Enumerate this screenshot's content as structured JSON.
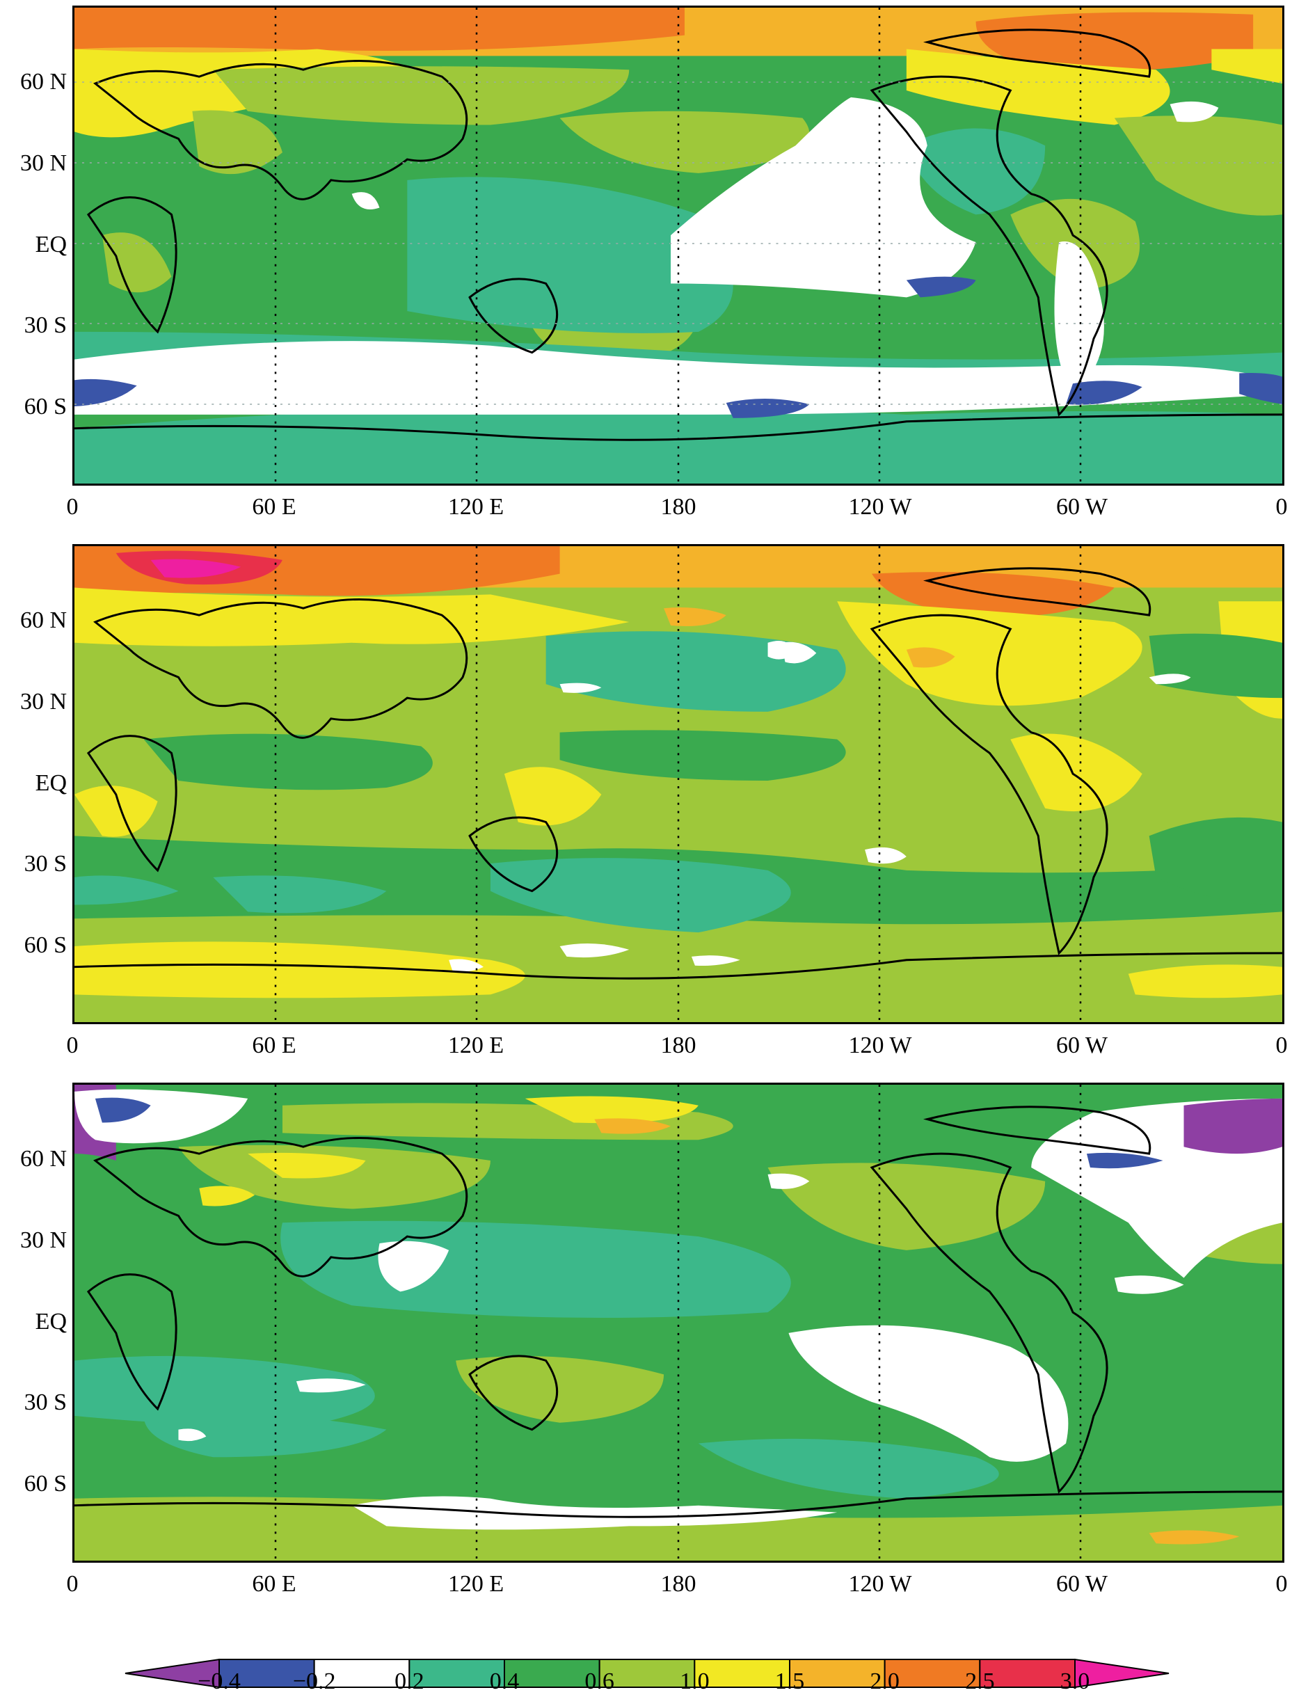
{
  "panels": [
    {
      "lat_labels": [
        "60 N",
        "30 N",
        "EQ",
        "30 S",
        "60 S"
      ],
      "lon_labels": [
        "0",
        "60 E",
        "120 E",
        "180",
        "120 W",
        "60 W",
        "0"
      ],
      "dominant_class": "0.4-0.6"
    },
    {
      "lat_labels": [
        "60 N",
        "30 N",
        "EQ",
        "30 S",
        "60 S"
      ],
      "lon_labels": [
        "0",
        "60 E",
        "120 E",
        "180",
        "120 W",
        "60 W",
        "0"
      ],
      "dominant_class": "0.6-1.0"
    },
    {
      "lat_labels": [
        "60 N",
        "30 N",
        "EQ",
        "30 S",
        "60 S"
      ],
      "lon_labels": [
        "0",
        "60 E",
        "120 E",
        "180",
        "120 W",
        "60 W",
        "0"
      ],
      "dominant_class": "0.4-0.6"
    }
  ],
  "colorbar": {
    "levels": [
      "−0.4",
      "−0.2",
      "0.2",
      "0.4",
      "0.6",
      "1.0",
      "1.5",
      "2.0",
      "2.5",
      "3.0"
    ],
    "colors": [
      "#8e3fa3",
      "#3a55a8",
      "#ffffff",
      "#3cb88a",
      "#3aaa4f",
      "#9ec83a",
      "#f2e823",
      "#f4b32a",
      "#f07a23",
      "#e8304a",
      "#ee1fa0"
    ]
  }
}
